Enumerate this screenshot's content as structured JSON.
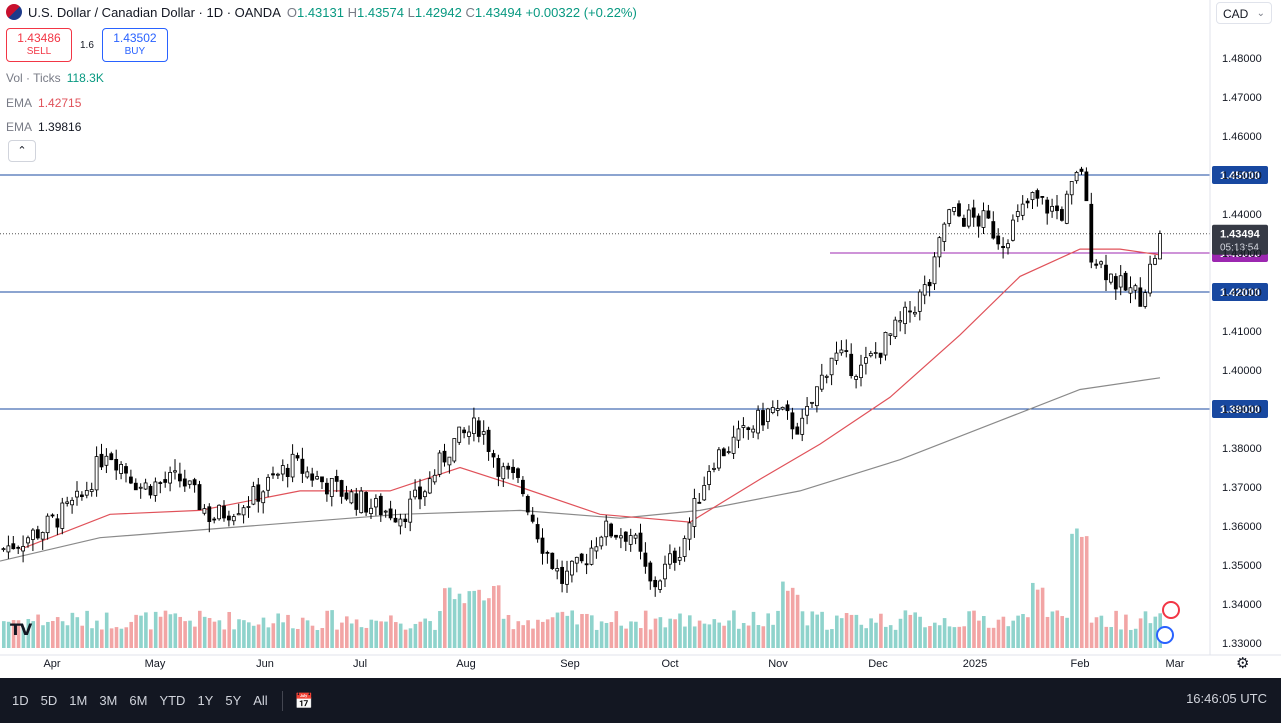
{
  "header": {
    "symbol": "U.S. Dollar / Canadian Dollar · 1D · OANDA",
    "open": "1.43131",
    "high": "1.43574",
    "low": "1.42942",
    "close": "1.43494",
    "change": "+0.00322 (+0.22%)"
  },
  "trade": {
    "sell_price": "1.43486",
    "sell_label": "SELL",
    "spread": "1.6",
    "buy_price": "1.43502",
    "buy_label": "BUY"
  },
  "indicators": {
    "vol_label": "Vol · Ticks",
    "vol_value": "118.3K",
    "ema1_label": "EMA",
    "ema1_value": "1.42715",
    "ema2_label": "EMA",
    "ema2_value": "1.39816"
  },
  "collapse_icon": "chevron-up-icon",
  "currency": "CAD",
  "logo": "TV",
  "toolbar": {
    "ranges": [
      "1D",
      "5D",
      "1M",
      "3M",
      "6M",
      "YTD",
      "1Y",
      "5Y",
      "All"
    ],
    "time": "16:46:05 UTC"
  },
  "colors": {
    "up": "#000000",
    "down": "#000000",
    "ema_fast": "#e0525a",
    "ema_slow": "#8a8a8a",
    "hline": "#1848a0",
    "purple": "#9c27b0",
    "vol_up": "#8fd3cc",
    "vol_down": "#f2a5a5"
  },
  "chart_data": {
    "type": "candlestick",
    "ylim": [
      1.325,
      1.485
    ],
    "y_ticks": [
      "1.48000",
      "1.47000",
      "1.46000",
      "1.45000",
      "1.44000",
      "1.43000",
      "1.42000",
      "1.41000",
      "1.40000",
      "1.39000",
      "1.38000",
      "1.37000",
      "1.36000",
      "1.35000",
      "1.34000",
      "1.33000"
    ],
    "x_labels": [
      "Apr",
      "May",
      "Jun",
      "Jul",
      "Aug",
      "Sep",
      "Oct",
      "Nov",
      "Dec",
      "2025",
      "Feb",
      "Mar"
    ],
    "horizontal_lines": [
      {
        "value": 1.45,
        "label": "1.45000",
        "color": "#1848a0"
      },
      {
        "value": 1.42,
        "label": "1.42000",
        "color": "#1848a0"
      },
      {
        "value": 1.39,
        "label": "1.39000",
        "color": "#1848a0"
      },
      {
        "value": 1.43,
        "label": "1.43000",
        "color": "#9c27b0"
      }
    ],
    "last_price": {
      "value": 1.43494,
      "label": "1.43494",
      "countdown": "05:13:54"
    },
    "price_path": [
      [
        0,
        1.354
      ],
      [
        40,
        1.359
      ],
      [
        80,
        1.367
      ],
      [
        105,
        1.38
      ],
      [
        140,
        1.37
      ],
      [
        180,
        1.372
      ],
      [
        210,
        1.362
      ],
      [
        250,
        1.367
      ],
      [
        290,
        1.376
      ],
      [
        330,
        1.37
      ],
      [
        370,
        1.365
      ],
      [
        400,
        1.363
      ],
      [
        420,
        1.368
      ],
      [
        450,
        1.381
      ],
      [
        478,
        1.386
      ],
      [
        500,
        1.374
      ],
      [
        520,
        1.37
      ],
      [
        540,
        1.356
      ],
      [
        560,
        1.346
      ],
      [
        580,
        1.35
      ],
      [
        600,
        1.359
      ],
      [
        630,
        1.358
      ],
      [
        650,
        1.344
      ],
      [
        680,
        1.355
      ],
      [
        710,
        1.377
      ],
      [
        740,
        1.383
      ],
      [
        770,
        1.39
      ],
      [
        800,
        1.385
      ],
      [
        830,
        1.404
      ],
      [
        860,
        1.4
      ],
      [
        900,
        1.412
      ],
      [
        930,
        1.423
      ],
      [
        945,
        1.44
      ],
      [
        985,
        1.438
      ],
      [
        1000,
        1.433
      ],
      [
        1030,
        1.444
      ],
      [
        1060,
        1.44
      ],
      [
        1080,
        1.452
      ],
      [
        1090,
        1.43
      ],
      [
        1120,
        1.421
      ],
      [
        1140,
        1.419
      ],
      [
        1160,
        1.435
      ]
    ],
    "ema_fast_path": [
      [
        20,
        1.354
      ],
      [
        110,
        1.363
      ],
      [
        200,
        1.364
      ],
      [
        300,
        1.369
      ],
      [
        390,
        1.369
      ],
      [
        460,
        1.375
      ],
      [
        520,
        1.37
      ],
      [
        600,
        1.363
      ],
      [
        690,
        1.361
      ],
      [
        760,
        1.372
      ],
      [
        820,
        1.381
      ],
      [
        890,
        1.393
      ],
      [
        960,
        1.409
      ],
      [
        1020,
        1.424
      ],
      [
        1080,
        1.431
      ],
      [
        1120,
        1.431
      ],
      [
        1160,
        1.4295
      ]
    ],
    "ema_slow_path": [
      [
        0,
        1.351
      ],
      [
        100,
        1.357
      ],
      [
        250,
        1.36
      ],
      [
        400,
        1.363
      ],
      [
        520,
        1.364
      ],
      [
        620,
        1.362
      ],
      [
        700,
        1.364
      ],
      [
        800,
        1.369
      ],
      [
        900,
        1.377
      ],
      [
        1000,
        1.387
      ],
      [
        1080,
        1.395
      ],
      [
        1160,
        1.398
      ]
    ],
    "volume_bars": "approx. 1 bar per trading day; tallest near early Feb"
  }
}
